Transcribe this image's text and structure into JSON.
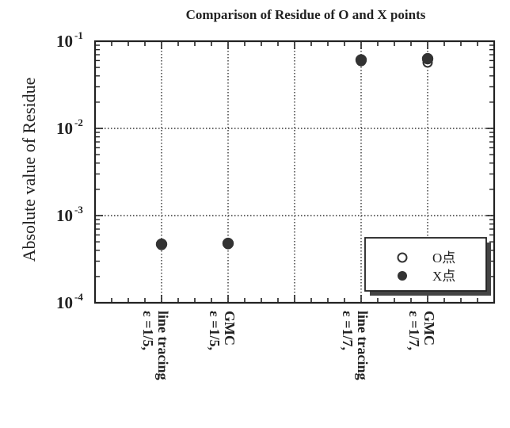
{
  "chart_data": {
    "type": "scatter",
    "title": "Comparison of Residue of O and X points",
    "ylabel": "Absolute value of Residue",
    "xlabel": "",
    "y_scale": "log",
    "ylim": [
      0.0001,
      0.1
    ],
    "y_ticks": [
      {
        "base": "10",
        "exp": "-4",
        "value": 0.0001
      },
      {
        "base": "10",
        "exp": "-3",
        "value": 0.001
      },
      {
        "base": "10",
        "exp": "-2",
        "value": 0.01
      },
      {
        "base": "10",
        "exp": "-1",
        "value": 0.1
      }
    ],
    "xlim": [
      0,
      6
    ],
    "categories": [
      {
        "x": 1,
        "lines": [
          "ε =1/5,",
          "line tracing"
        ]
      },
      {
        "x": 2,
        "lines": [
          "ε =1/5,",
          "GMC"
        ]
      },
      {
        "x": 4,
        "lines": [
          "ε =1/7,",
          "line tracing"
        ]
      },
      {
        "x": 5,
        "lines": [
          "ε =1/7,",
          "GMC"
        ]
      }
    ],
    "grid": true,
    "legend_position": "bottom-right",
    "series": [
      {
        "name": "O点",
        "marker": "open-circle",
        "color": "#333333",
        "points": [
          {
            "x": 1,
            "y": 0.00046
          },
          {
            "x": 2,
            "y": 0.00047
          },
          {
            "x": 4,
            "y": 0.059
          },
          {
            "x": 5,
            "y": 0.057
          }
        ]
      },
      {
        "name": "X点",
        "marker": "filled-circle",
        "color": "#333333",
        "points": [
          {
            "x": 1,
            "y": 0.00047
          },
          {
            "x": 2,
            "y": 0.00048
          },
          {
            "x": 4,
            "y": 0.061
          },
          {
            "x": 5,
            "y": 0.063
          }
        ]
      }
    ]
  }
}
